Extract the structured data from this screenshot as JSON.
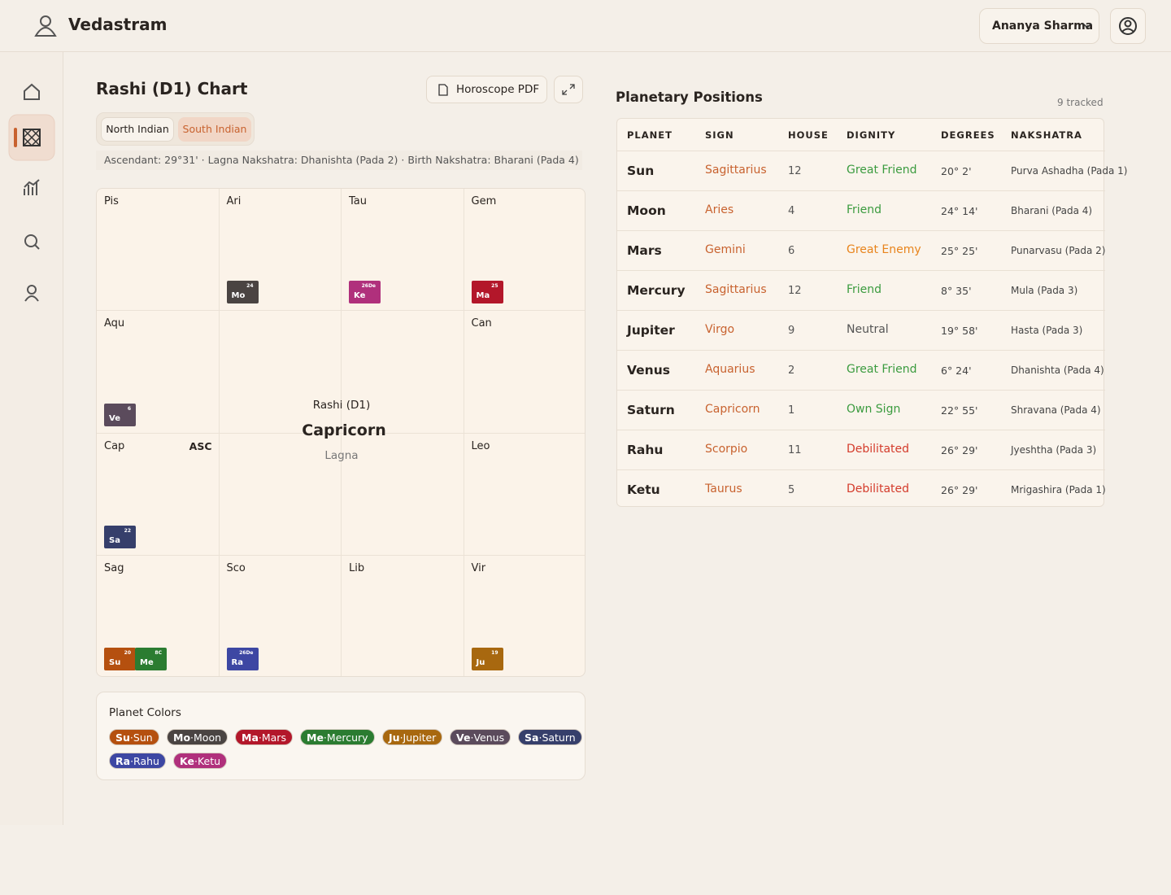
{
  "header": {
    "brand": "Vedastram",
    "user": "Ananya Sharma"
  },
  "chart_panel": {
    "title": "Rashi (D1) Chart",
    "pdf_button": "Horoscope PDF",
    "styles": [
      "North Indian",
      "South Indian"
    ],
    "info": "Ascendant: 29°31' · Lagna Nakshatra: Dhanishta (Pada 2) · Birth Nakshatra: Bharani (Pada 4)",
    "center": {
      "label": "Rashi (D1)",
      "sign": "Capricorn",
      "sub": "Lagna"
    },
    "houses": [
      {
        "sign": "Pis",
        "planets": []
      },
      {
        "sign": "Ari",
        "planets": [
          {
            "abbr": "Mo",
            "deg": "24"
          }
        ]
      },
      {
        "sign": "Tau",
        "planets": [
          {
            "abbr": "Ke",
            "deg": "26De"
          }
        ]
      },
      {
        "sign": "Gem",
        "planets": [
          {
            "abbr": "Ma",
            "deg": "25"
          }
        ]
      },
      {
        "sign": "Can",
        "planets": []
      },
      {
        "sign": "Leo",
        "planets": []
      },
      {
        "sign": "Vir",
        "planets": [
          {
            "abbr": "Ju",
            "deg": "19"
          }
        ]
      },
      {
        "sign": "Lib",
        "planets": []
      },
      {
        "sign": "Sco",
        "planets": [
          {
            "abbr": "Ra",
            "deg": "26De"
          }
        ]
      },
      {
        "sign": "Sag",
        "planets": [
          {
            "abbr": "Su",
            "deg": "20"
          },
          {
            "abbr": "Me",
            "deg": "8C"
          }
        ]
      },
      {
        "sign": "Cap",
        "marker": "ASC",
        "planets": [
          {
            "abbr": "Sa",
            "deg": "22"
          }
        ]
      },
      {
        "sign": "Aqu",
        "planets": [
          {
            "abbr": "Ve",
            "deg": "6"
          }
        ]
      }
    ]
  },
  "legend": {
    "title": "Planet Colors",
    "items": [
      {
        "abbr": "Su",
        "name": "Sun",
        "color": "#b5500f"
      },
      {
        "abbr": "Mo",
        "name": "Moon",
        "color": "#4a4442"
      },
      {
        "abbr": "Ma",
        "name": "Mars",
        "color": "#b3172a"
      },
      {
        "abbr": "Me",
        "name": "Mercury",
        "color": "#2b7c31"
      },
      {
        "abbr": "Ju",
        "name": "Jupiter",
        "color": "#a8680f"
      },
      {
        "abbr": "Ve",
        "name": "Venus",
        "color": "#5b4b5c"
      },
      {
        "abbr": "Sa",
        "name": "Saturn",
        "color": "#363f6b"
      },
      {
        "abbr": "Ra",
        "name": "Rahu",
        "color": "#3d47a3"
      },
      {
        "abbr": "Ke",
        "name": "Ketu",
        "color": "#b0307c"
      }
    ]
  },
  "table": {
    "title": "Planetary Positions",
    "count_label": "9 tracked",
    "columns": [
      "PLANET",
      "SIGN",
      "HOUSE",
      "DIGNITY",
      "DEGREES",
      "NAKSHATRA"
    ],
    "rows": [
      {
        "planet": "Sun",
        "sign": "Sagittarius",
        "house": 12,
        "dignity": "Great Friend",
        "dignity_color": "#3b9b3f",
        "degrees": "20° 2'",
        "nakshatra": "Purva Ashadha (Pada 1)"
      },
      {
        "planet": "Moon",
        "sign": "Aries",
        "house": 4,
        "dignity": "Friend",
        "dignity_color": "#3b9b3f",
        "degrees": "24° 14'",
        "nakshatra": "Bharani (Pada 4)"
      },
      {
        "planet": "Mars",
        "sign": "Gemini",
        "house": 6,
        "dignity": "Great Enemy",
        "dignity_color": "#e8841c",
        "degrees": "25° 25'",
        "nakshatra": "Punarvasu (Pada 2)"
      },
      {
        "planet": "Mercury",
        "sign": "Sagittarius",
        "house": 12,
        "dignity": "Friend",
        "dignity_color": "#3b9b3f",
        "degrees": "8° 35'",
        "nakshatra": "Mula (Pada 3)"
      },
      {
        "planet": "Jupiter",
        "sign": "Virgo",
        "house": 9,
        "dignity": "Neutral",
        "dignity_color": "#555555",
        "degrees": "19° 58'",
        "nakshatra": "Hasta (Pada 3)"
      },
      {
        "planet": "Venus",
        "sign": "Aquarius",
        "house": 2,
        "dignity": "Great Friend",
        "dignity_color": "#3b9b3f",
        "degrees": "6° 24'",
        "nakshatra": "Dhanishta (Pada 4)"
      },
      {
        "planet": "Saturn",
        "sign": "Capricorn",
        "house": 1,
        "dignity": "Own Sign",
        "dignity_color": "#3b9b3f",
        "degrees": "22° 55'",
        "nakshatra": "Shravana (Pada 4)"
      },
      {
        "planet": "Rahu",
        "sign": "Scorpio",
        "house": 11,
        "dignity": "Debilitated",
        "dignity_color": "#d43b2b",
        "degrees": "26° 29'",
        "nakshatra": "Jyeshtha (Pada 3)"
      },
      {
        "planet": "Ketu",
        "sign": "Taurus",
        "house": 5,
        "dignity": "Debilitated",
        "dignity_color": "#d43b2b",
        "degrees": "26° 29'",
        "nakshatra": "Mrigashira (Pada 1)"
      }
    ]
  }
}
